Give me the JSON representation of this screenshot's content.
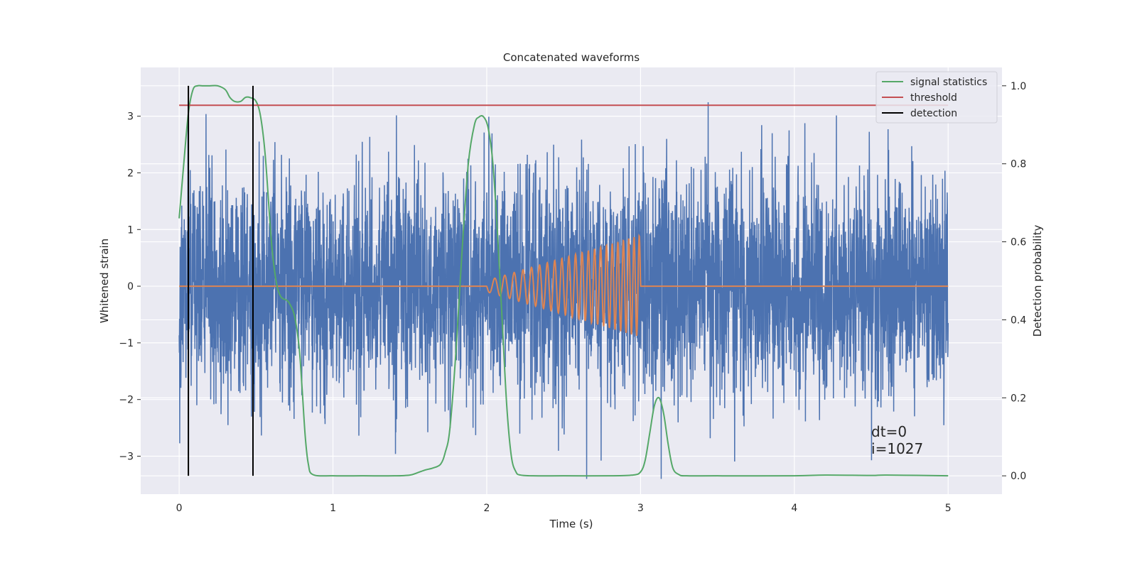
{
  "chart_data": {
    "type": "line",
    "title": "Concatenated waveforms",
    "xlabel": "Time (s)",
    "ylabel_left": "Whitened strain",
    "ylabel_right": "Detection probability",
    "xlim": [
      -0.25,
      5.35
    ],
    "ylim_left": [
      -3.67,
      3.86
    ],
    "ylim_right": [
      -0.047,
      1.047
    ],
    "x_ticks": [
      0,
      1,
      2,
      3,
      4,
      5
    ],
    "y_ticks_left": [
      -3,
      -2,
      -1,
      0,
      1,
      2,
      3
    ],
    "y_tick_labels_left": [
      "−3",
      "−2",
      "−1",
      "0",
      "1",
      "2",
      "3"
    ],
    "y_ticks_right": [
      0.0,
      0.2,
      0.4,
      0.6,
      0.8,
      1.0
    ],
    "y_tick_labels_right": [
      "0.0",
      "0.2",
      "0.4",
      "0.6",
      "0.8",
      "1.0"
    ],
    "grid": true,
    "legend_position": "top-right",
    "legend": [
      {
        "label": "signal statistics",
        "color": "#55a868"
      },
      {
        "label": "threshold",
        "color": "#c44e52"
      },
      {
        "label": "detection",
        "color": "#000000"
      }
    ],
    "series": [
      {
        "type": "noise",
        "color": "#4c72b0",
        "axis": "left",
        "x_range": [
          0,
          5
        ],
        "typical_amplitude": 1.0,
        "peak_range": [
          -3.4,
          3.5
        ]
      },
      {
        "type": "chirp",
        "color": "#dd8452",
        "axis": "left",
        "x_range": [
          0,
          5
        ],
        "chirp_start": 2.0,
        "chirp_end": 3.0,
        "amplitude_start": 0.1,
        "amplitude_end": 0.9
      },
      {
        "name": "signal statistics",
        "color": "#55a868",
        "axis": "right",
        "x": [
          0.0,
          0.03,
          0.06,
          0.09,
          0.12,
          0.15,
          0.2,
          0.25,
          0.3,
          0.33,
          0.36,
          0.4,
          0.43,
          0.46,
          0.5,
          0.53,
          0.56,
          0.6,
          0.63,
          0.66,
          0.7,
          0.72,
          0.75,
          0.78,
          0.8,
          0.82,
          0.84,
          0.87,
          1.0,
          1.2,
          1.4,
          1.5,
          1.55,
          1.6,
          1.65,
          1.7,
          1.73,
          1.76,
          1.8,
          1.84,
          1.88,
          1.92,
          1.95,
          1.98,
          2.01,
          2.04,
          2.07,
          2.1,
          2.13,
          2.16,
          2.19,
          2.22,
          2.3,
          2.5,
          2.8,
          2.95,
          3.0,
          3.03,
          3.06,
          3.09,
          3.12,
          3.15,
          3.18,
          3.21,
          3.25,
          3.3,
          3.5,
          4.0,
          4.2,
          4.5,
          4.6,
          5.0
        ],
        "y": [
          0.66,
          0.8,
          0.93,
          0.99,
          1.0,
          1.0,
          1.0,
          1.0,
          0.99,
          0.97,
          0.96,
          0.96,
          0.97,
          0.97,
          0.96,
          0.92,
          0.82,
          0.6,
          0.5,
          0.46,
          0.45,
          0.44,
          0.41,
          0.33,
          0.22,
          0.1,
          0.03,
          0.003,
          0.0,
          0.0,
          0.0,
          0.002,
          0.008,
          0.015,
          0.02,
          0.03,
          0.06,
          0.12,
          0.32,
          0.58,
          0.8,
          0.9,
          0.92,
          0.92,
          0.89,
          0.8,
          0.62,
          0.4,
          0.18,
          0.05,
          0.01,
          0.002,
          0.0,
          0.0,
          0.0,
          0.002,
          0.01,
          0.04,
          0.11,
          0.18,
          0.2,
          0.16,
          0.08,
          0.02,
          0.003,
          0.0,
          0.0,
          0.0,
          0.002,
          0.001,
          0.002,
          0.0
        ]
      },
      {
        "name": "threshold",
        "color": "#c44e52",
        "axis": "right",
        "x": [
          0.0,
          5.0
        ],
        "y": [
          0.95,
          0.95
        ]
      },
      {
        "name": "detection",
        "color": "#000000",
        "axis": "right",
        "vlines": [
          0.06,
          0.48
        ],
        "ymin": 0.0,
        "ymax": 1.0
      }
    ],
    "annotations": [
      {
        "text": "dt=0",
        "x": 4.5,
        "y": 0.1
      },
      {
        "text": "i=1027",
        "x": 4.5,
        "y": 0.057
      }
    ]
  }
}
